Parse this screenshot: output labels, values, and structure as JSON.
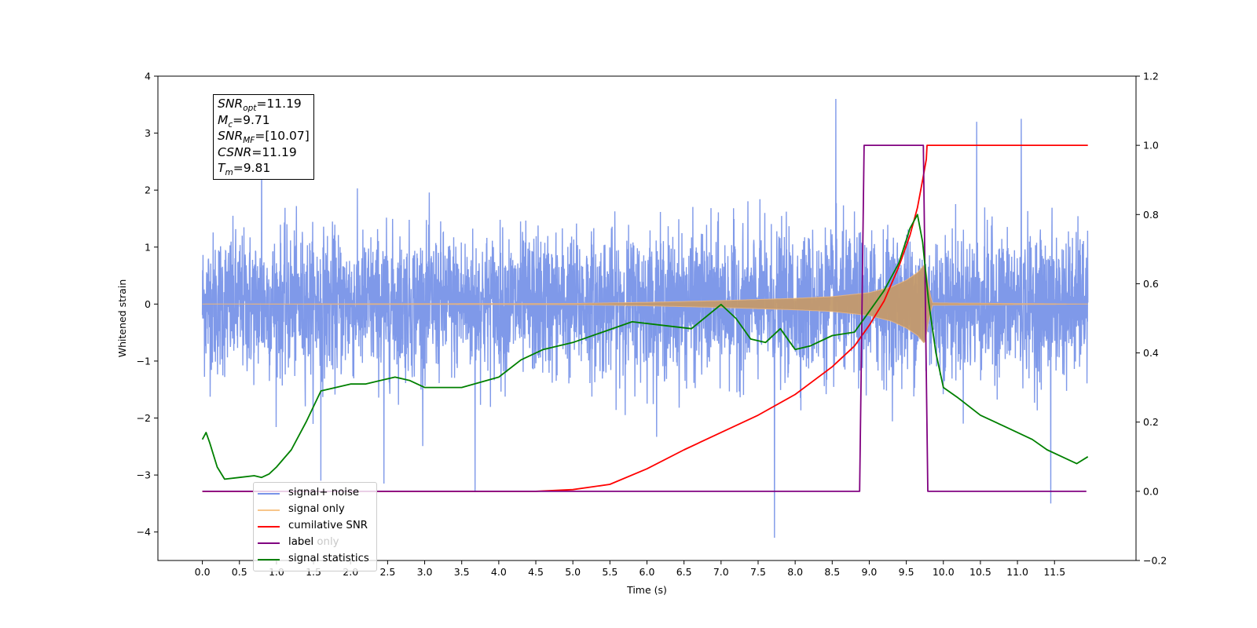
{
  "chart_data": {
    "type": "line",
    "xlabel": "Time (s)",
    "ylabel": "Whitened strain",
    "xlim": [
      -0.6,
      12.6
    ],
    "ylim": [
      -4.5,
      4.0
    ],
    "y2lim": [
      -0.2,
      1.2
    ],
    "x_ticks": [
      "0.0",
      "0.5",
      "1.0",
      "1.5",
      "2.0",
      "2.5",
      "3.0",
      "3.5",
      "4.0",
      "4.5",
      "5.0",
      "5.5",
      "6.0",
      "6.5",
      "7.0",
      "7.5",
      "8.0",
      "8.5",
      "9.0",
      "9.5",
      "10.0",
      "10.5",
      "11.0",
      "11.5"
    ],
    "y_ticks": [
      "−4",
      "−3",
      "−2",
      "−1",
      "0",
      "1",
      "2",
      "3",
      "4"
    ],
    "y2_ticks": [
      "−0.2",
      "0.0",
      "0.2",
      "0.4",
      "0.6",
      "0.8",
      "1.0",
      "1.2"
    ],
    "grid": false,
    "legend_position": "lower-left",
    "series": [
      {
        "name": "signal+ noise",
        "axis": "left",
        "color": "#7893e8",
        "description": "dense noisy strain samples, envelope",
        "x": [
          0.0,
          11.95
        ],
        "y_typical_range": [
          -2.0,
          1.8
        ],
        "spikes": [
          {
            "x": 3.68,
            "y": -3.3
          },
          {
            "x": 8.55,
            "y": 3.6
          },
          {
            "x": 7.72,
            "y": -4.1
          },
          {
            "x": 11.45,
            "y": -3.5
          },
          {
            "x": 11.05,
            "y": 3.25
          },
          {
            "x": 10.45,
            "y": 3.2
          },
          {
            "x": 1.6,
            "y": -3.1
          },
          {
            "x": 2.45,
            "y": -3.15
          },
          {
            "x": 0.8,
            "y": 2.9
          }
        ]
      },
      {
        "name": "signal only",
        "axis": "left",
        "color": "#f0b070",
        "description": "chirp amplitude envelope",
        "x": [
          0.0,
          5.0,
          6.0,
          7.0,
          8.0,
          8.5,
          9.0,
          9.3,
          9.5,
          9.65,
          9.75,
          9.8,
          9.85,
          11.95
        ],
        "amplitude": [
          0.0,
          0.01,
          0.03,
          0.06,
          0.1,
          0.13,
          0.2,
          0.3,
          0.42,
          0.55,
          0.7,
          0.3,
          0.02,
          0.0
        ]
      },
      {
        "name": "cumilative SNR",
        "axis": "right",
        "color": "#ff0000",
        "x": [
          0.0,
          4.5,
          5.0,
          5.5,
          6.0,
          6.5,
          7.0,
          7.5,
          8.0,
          8.5,
          8.8,
          9.0,
          9.2,
          9.4,
          9.55,
          9.65,
          9.72,
          9.77,
          9.78,
          11.95
        ],
        "values": [
          0.0,
          0.0,
          0.005,
          0.02,
          0.065,
          0.12,
          0.17,
          0.22,
          0.28,
          0.36,
          0.42,
          0.48,
          0.55,
          0.65,
          0.74,
          0.82,
          0.9,
          0.96,
          1.0,
          1.0
        ]
      },
      {
        "name": "label",
        "axis": "right",
        "color": "#800080",
        "x": [
          0.0,
          8.87,
          8.93,
          9.73,
          9.79,
          11.93
        ],
        "values": [
          0.0,
          0.0,
          1.0,
          1.0,
          0.0,
          0.0
        ]
      },
      {
        "name": "signal statistics",
        "axis": "right",
        "color": "#008000",
        "x": [
          0.0,
          0.05,
          0.1,
          0.2,
          0.3,
          0.5,
          0.7,
          0.8,
          0.9,
          1.0,
          1.2,
          1.4,
          1.6,
          1.8,
          2.0,
          2.2,
          2.4,
          2.6,
          2.8,
          3.0,
          3.5,
          4.0,
          4.3,
          4.6,
          5.0,
          5.4,
          5.8,
          6.2,
          6.6,
          7.0,
          7.2,
          7.4,
          7.6,
          7.8,
          8.0,
          8.2,
          8.5,
          8.8,
          9.0,
          9.2,
          9.4,
          9.55,
          9.65,
          9.72,
          9.8,
          9.9,
          10.0,
          10.2,
          10.5,
          10.8,
          11.0,
          11.2,
          11.4,
          11.6,
          11.8,
          11.95
        ],
        "values": [
          0.15,
          0.17,
          0.14,
          0.07,
          0.035,
          0.04,
          0.045,
          0.04,
          0.05,
          0.07,
          0.12,
          0.2,
          0.29,
          0.3,
          0.31,
          0.31,
          0.32,
          0.33,
          0.32,
          0.3,
          0.3,
          0.33,
          0.38,
          0.41,
          0.43,
          0.46,
          0.49,
          0.48,
          0.47,
          0.54,
          0.5,
          0.44,
          0.43,
          0.47,
          0.41,
          0.42,
          0.45,
          0.46,
          0.52,
          0.58,
          0.66,
          0.76,
          0.8,
          0.72,
          0.55,
          0.4,
          0.3,
          0.27,
          0.22,
          0.19,
          0.17,
          0.15,
          0.12,
          0.1,
          0.08,
          0.1
        ]
      }
    ]
  },
  "info_box": {
    "snr_opt_name": "SNR",
    "snr_opt_sub": "opt",
    "snr_opt_value": "=11.19",
    "mc_name": "M",
    "mc_sub": "c",
    "mc_value": "=9.71",
    "snr_mf_name": "SNR",
    "snr_mf_sub": "MF",
    "snr_mf_value": "=[10.07]",
    "csnr_name": "CSNR",
    "csnr_value": "=11.19",
    "tm_name": "T",
    "tm_sub": "m",
    "tm_value": "=9.81"
  },
  "legend": {
    "items": [
      {
        "label": "signal+ noise",
        "color": "#7893e8"
      },
      {
        "label": "signal only",
        "color": "#f7c58a"
      },
      {
        "label": "cumilative SNR",
        "color": "#ff0000"
      },
      {
        "label": "label",
        "color": "#800080"
      },
      {
        "label": "signal statistics",
        "color": "#008000"
      }
    ],
    "hidden_label": "label only"
  }
}
